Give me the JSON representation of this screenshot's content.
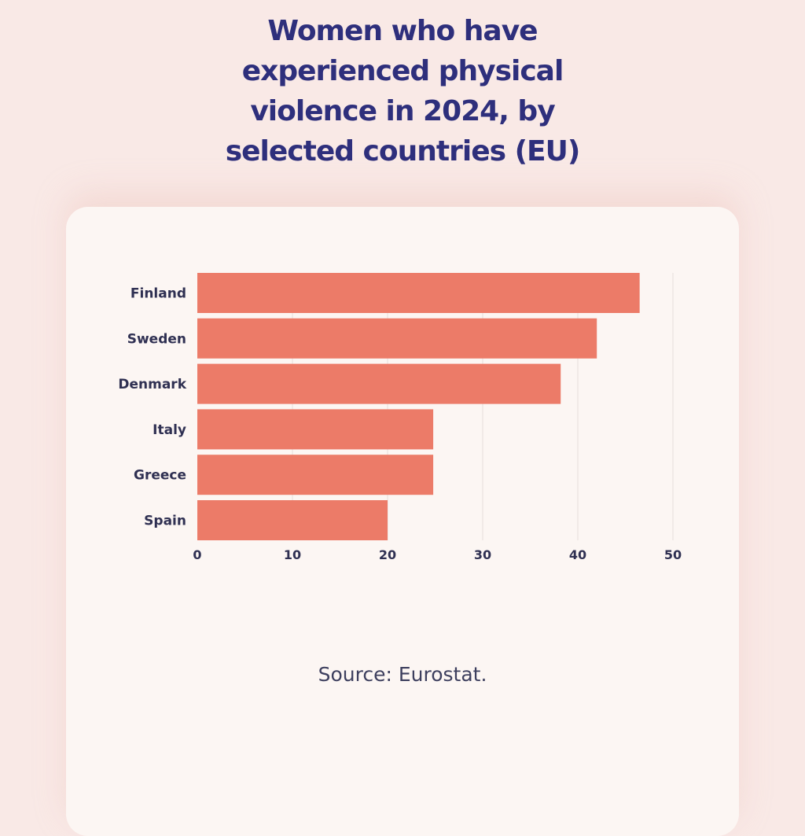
{
  "title": "Women who have experienced physical violence in 2024, by selected countries (EU)",
  "source": "Source: Eurostat.",
  "colors": {
    "bar": "#ec7b68",
    "background": "#f9e9e6",
    "card": "#fcf6f3",
    "title": "#2e2f7c",
    "gridline": "#e6dedb"
  },
  "chart_data": {
    "type": "bar",
    "orientation": "horizontal",
    "categories": [
      "Finland",
      "Sweden",
      "Denmark",
      "Italy",
      "Greece",
      "Spain"
    ],
    "values": [
      46.5,
      42,
      38.2,
      24.8,
      24.8,
      20
    ],
    "xlim": [
      0,
      50
    ],
    "xticks": [
      0,
      10,
      20,
      30,
      40,
      50
    ],
    "grid": "vertical"
  }
}
